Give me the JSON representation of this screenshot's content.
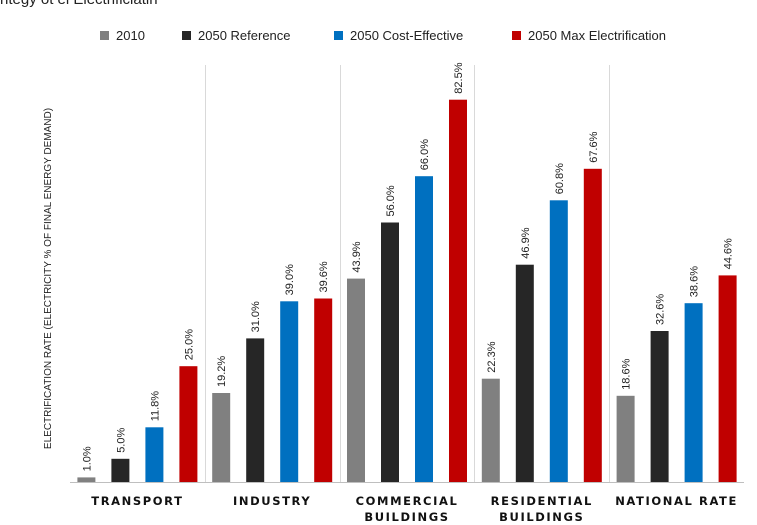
{
  "page": {
    "top_caption": "ntegy         ot el Electrificiatin"
  },
  "chart_data": {
    "type": "bar",
    "categories": [
      [
        "TRANSPORT"
      ],
      [
        "INDUSTRY"
      ],
      [
        "COMMERCIAL",
        "BUILDINGS"
      ],
      [
        "RESIDENTIAL",
        "BUILDINGS"
      ],
      [
        "NATIONAL RATE"
      ]
    ],
    "series": [
      {
        "name": "2010",
        "color": "#808080",
        "values": [
          1.0,
          19.2,
          43.9,
          22.3,
          18.6
        ]
      },
      {
        "name": "2050 Reference",
        "color": "#262626",
        "values": [
          5.0,
          31.0,
          56.0,
          46.9,
          32.6
        ]
      },
      {
        "name": "2050 Cost-Effective",
        "color": "#0070c0",
        "values": [
          11.8,
          39.0,
          66.0,
          60.8,
          38.6
        ]
      },
      {
        "name": "2050 Max Electrification",
        "color": "#c00000",
        "values": [
          25.0,
          39.6,
          82.5,
          67.6,
          44.6
        ]
      }
    ],
    "value_suffix": "%",
    "ylabel": "ELECTRIFICATION RATE (ELECTRICITY % OF FINAL ENERGY DEMAND)",
    "ylim": [
      0,
      90
    ],
    "grid": false,
    "legend_position": "top",
    "category_separators": true
  }
}
